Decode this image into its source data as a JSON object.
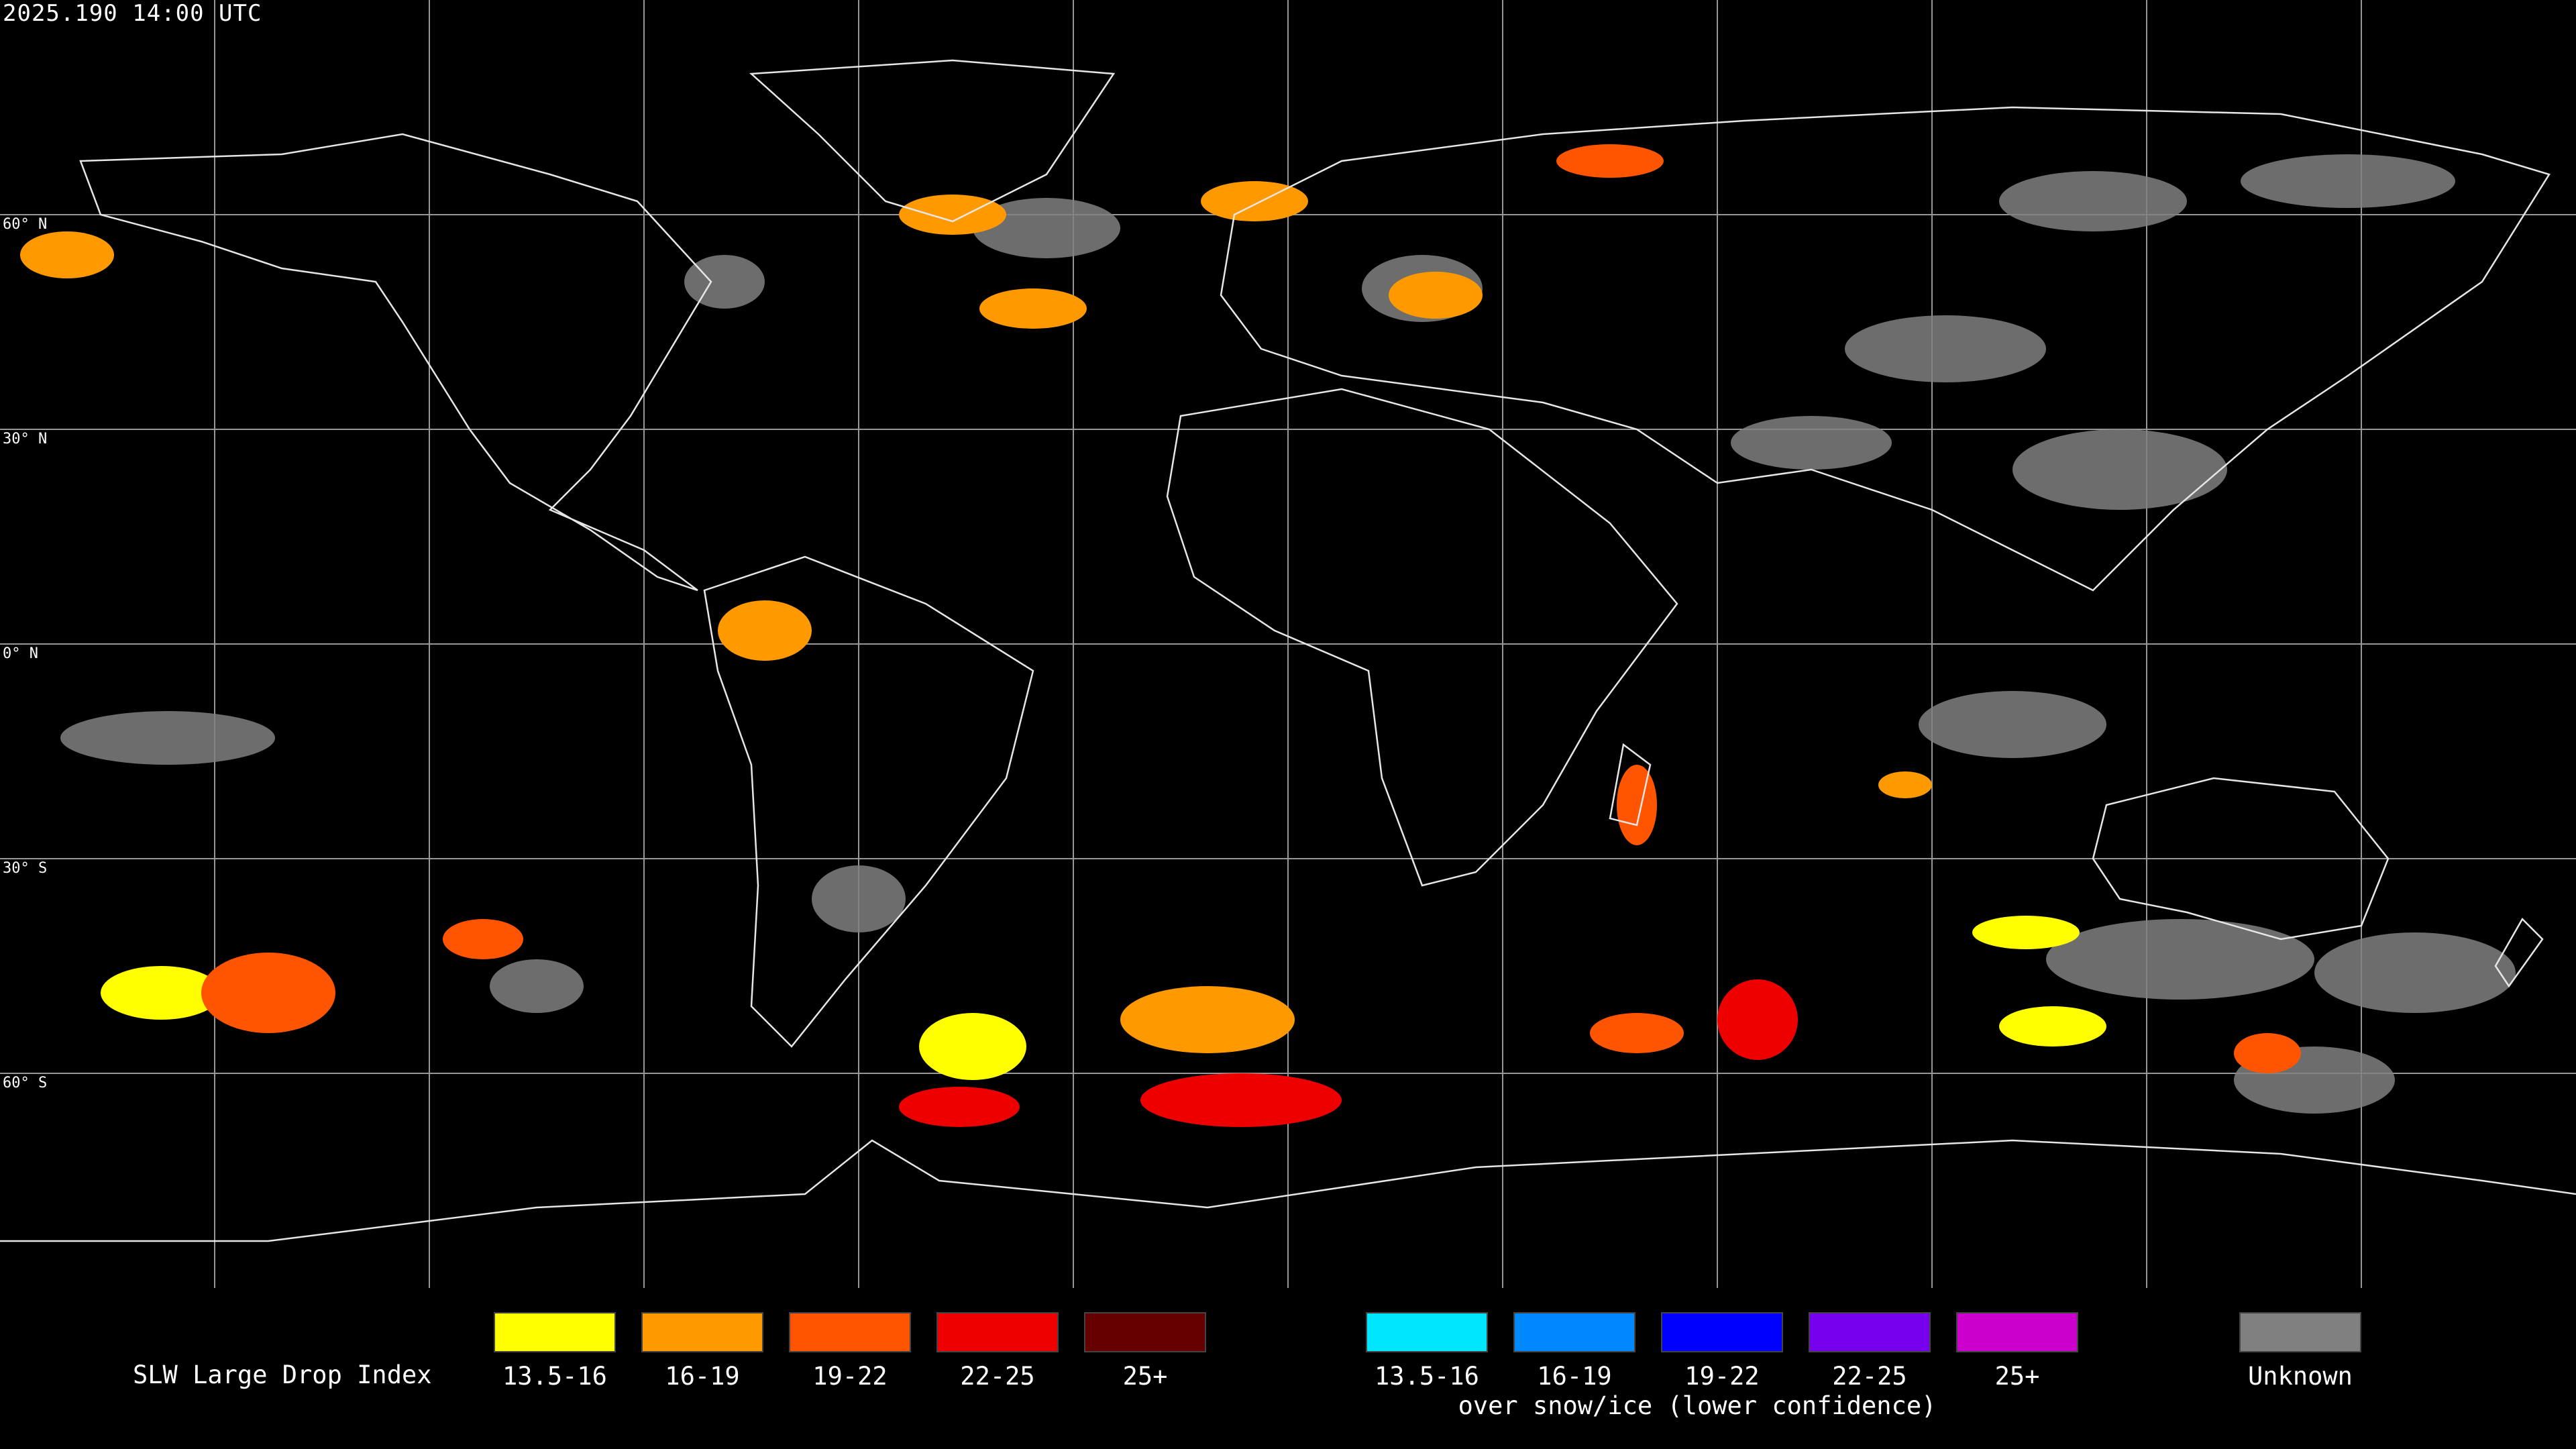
{
  "header": {
    "timestamp": "2025.190 14:00 UTC"
  },
  "map": {
    "latitude_labels": [
      "60° N",
      "30° N",
      "0° N",
      "30° S",
      "60° S"
    ],
    "land_color": "#000000",
    "coast_color": "#e6e6e6",
    "grid_color": "#cfcfcf"
  },
  "legend": {
    "title": "SLW Large Drop Index",
    "water_items": [
      {
        "label": "13.5-16",
        "color": "#ffff00"
      },
      {
        "label": "16-19",
        "color": "#ff9900"
      },
      {
        "label": "19-22",
        "color": "#ff5500"
      },
      {
        "label": "22-25",
        "color": "#ee0000"
      },
      {
        "label": "25+",
        "color": "#660000"
      }
    ],
    "snow_items": [
      {
        "label": "13.5-16",
        "color": "#00e6ff"
      },
      {
        "label": "16-19",
        "color": "#0088ff"
      },
      {
        "label": "19-22",
        "color": "#0000ff"
      },
      {
        "label": "22-25",
        "color": "#7700ee"
      },
      {
        "label": "25+",
        "color": "#cc00cc"
      }
    ],
    "snow_caption": "over snow/ice (lower confidence)",
    "unknown": {
      "label": "Unknown",
      "color": "#808080"
    }
  }
}
